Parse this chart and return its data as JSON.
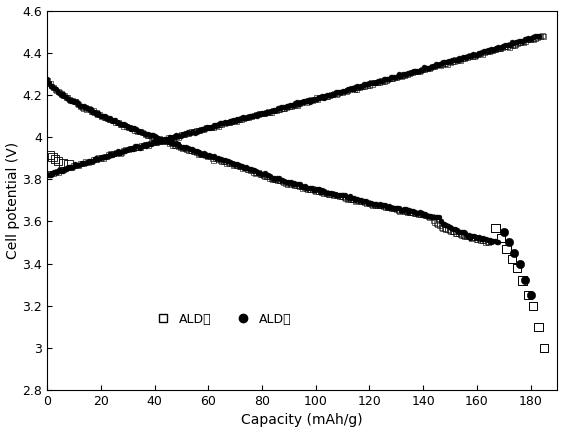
{
  "title": "",
  "xlabel": "Capacity (mAh/g)",
  "ylabel": "Cell potential (V)",
  "xlim": [
    0,
    190
  ],
  "ylim": [
    2.8,
    4.6
  ],
  "xticks": [
    0,
    20,
    40,
    60,
    80,
    100,
    120,
    140,
    160,
    180
  ],
  "yticks": [
    2.8,
    3.0,
    3.2,
    3.4,
    3.6,
    3.8,
    4.0,
    4.2,
    4.4,
    4.6
  ],
  "legend_labels": [
    "ALD前",
    "ALD后"
  ],
  "background_color": "#ffffff"
}
